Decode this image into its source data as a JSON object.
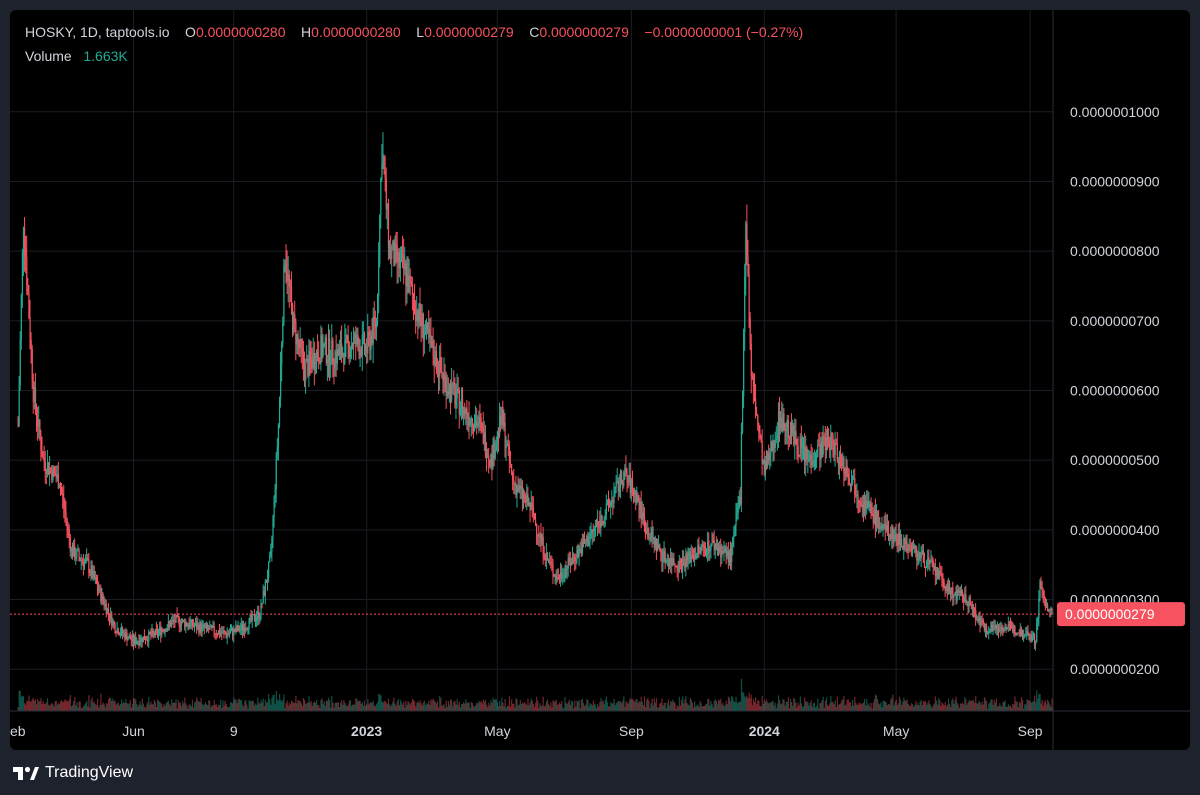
{
  "legend": {
    "symbol": "HOSKY, 1D, taptools.io",
    "o_label": "O",
    "o_value": "0.0000000280",
    "h_label": "H",
    "h_value": "0.0000000280",
    "l_label": "L",
    "l_value": "0.0000000279",
    "c_label": "C",
    "c_value": "0.0000000279",
    "change": "−0.0000000001 (−0.27%)",
    "volume_label": "Volume",
    "volume_value": "1.663K"
  },
  "footer": {
    "brand": "TradingView",
    "logo_icon": "tradingview-logo-icon"
  },
  "colors": {
    "up": "#22ab94",
    "down": "#f7525f",
    "background": "#000000",
    "frame": "#1e222d",
    "grid": "#1a1d24",
    "axis_text": "#d1d4dc",
    "price_line": "#f7525f",
    "price_label_bg": "#f7525f"
  },
  "chart_data": {
    "type": "candlestick",
    "symbol": "HOSKY",
    "interval": "1D",
    "y_axis": {
      "ticks": [
        2e-08,
        3e-08,
        4e-08,
        5e-08,
        6e-08,
        7e-08,
        8e-08,
        9e-08,
        1e-07
      ],
      "tick_labels": [
        "0.0000000200",
        "0.0000000300",
        "0.0000000400",
        "0.0000000500",
        "0.0000000600",
        "0.0000000700",
        "0.0000000800",
        "0.0000000900",
        "0.0000001000"
      ],
      "range": [
        1.4e-08,
        1.06e-07
      ]
    },
    "x_axis": {
      "range": [
        "2022-02-15",
        "2024-09-22"
      ],
      "ticks": [
        {
          "date": "2022-02-01",
          "label": "eb"
        },
        {
          "date": "2022-06-01",
          "label": "Jun"
        },
        {
          "date": "2022-09-01",
          "label": "9"
        },
        {
          "date": "2023-01-01",
          "label": "2023"
        },
        {
          "date": "2023-05-01",
          "label": "May"
        },
        {
          "date": "2023-09-01",
          "label": "Sep"
        },
        {
          "date": "2024-01-01",
          "label": "2024"
        },
        {
          "date": "2024-05-01",
          "label": "May"
        },
        {
          "date": "2024-09-01",
          "label": "Sep"
        }
      ]
    },
    "last_price": 2.79e-08,
    "last_price_label": "0.0000000279",
    "price_path": [
      [
        "2022-02-15",
        5.5e-08
      ],
      [
        "2022-02-20",
        8.5e-08
      ],
      [
        "2022-03-01",
        6e-08
      ],
      [
        "2022-03-10",
        5e-08
      ],
      [
        "2022-03-25",
        4.7e-08
      ],
      [
        "2022-04-05",
        3.7e-08
      ],
      [
        "2022-04-20",
        3.5e-08
      ],
      [
        "2022-05-01",
        3.1e-08
      ],
      [
        "2022-05-15",
        2.6e-08
      ],
      [
        "2022-06-01",
        2.4e-08
      ],
      [
        "2022-06-20",
        2.5e-08
      ],
      [
        "2022-07-10",
        2.7e-08
      ],
      [
        "2022-08-01",
        2.6e-08
      ],
      [
        "2022-08-25",
        2.5e-08
      ],
      [
        "2022-09-10",
        2.6e-08
      ],
      [
        "2022-09-25",
        2.8e-08
      ],
      [
        "2022-10-05",
        3.6e-08
      ],
      [
        "2022-10-12",
        5.5e-08
      ],
      [
        "2022-10-18",
        8e-08
      ],
      [
        "2022-10-25",
        7e-08
      ],
      [
        "2022-11-05",
        6.3e-08
      ],
      [
        "2022-11-20",
        6.6e-08
      ],
      [
        "2022-12-05",
        6.5e-08
      ],
      [
        "2022-12-20",
        6.7e-08
      ],
      [
        "2023-01-01",
        6.6e-08
      ],
      [
        "2023-01-10",
        7e-08
      ],
      [
        "2023-01-15",
        9.5e-08
      ],
      [
        "2023-01-22",
        8e-08
      ],
      [
        "2023-02-05",
        7.7e-08
      ],
      [
        "2023-02-15",
        7.2e-08
      ],
      [
        "2023-03-01",
        6.6e-08
      ],
      [
        "2023-03-15",
        6.1e-08
      ],
      [
        "2023-04-01",
        5.7e-08
      ],
      [
        "2023-04-15",
        5.5e-08
      ],
      [
        "2023-04-25",
        5e-08
      ],
      [
        "2023-05-05",
        5.6e-08
      ],
      [
        "2023-05-15",
        4.7e-08
      ],
      [
        "2023-06-01",
        4.3e-08
      ],
      [
        "2023-06-15",
        3.6e-08
      ],
      [
        "2023-06-25",
        3.3e-08
      ],
      [
        "2023-07-10",
        3.6e-08
      ],
      [
        "2023-07-25",
        3.9e-08
      ],
      [
        "2023-08-10",
        4.3e-08
      ],
      [
        "2023-08-25",
        4.8e-08
      ],
      [
        "2023-09-05",
        4.5e-08
      ],
      [
        "2023-09-15",
        4e-08
      ],
      [
        "2023-10-01",
        3.6e-08
      ],
      [
        "2023-10-15",
        3.5e-08
      ],
      [
        "2023-11-01",
        3.7e-08
      ],
      [
        "2023-11-15",
        3.8e-08
      ],
      [
        "2023-12-01",
        3.6e-08
      ],
      [
        "2023-12-10",
        4.5e-08
      ],
      [
        "2023-12-15",
        8.5e-08
      ],
      [
        "2023-12-20",
        6.2e-08
      ],
      [
        "2024-01-01",
        4.8e-08
      ],
      [
        "2024-01-15",
        5.6e-08
      ],
      [
        "2024-01-25",
        5.4e-08
      ],
      [
        "2024-02-10",
        5e-08
      ],
      [
        "2024-03-01",
        5.3e-08
      ],
      [
        "2024-03-15",
        4.9e-08
      ],
      [
        "2024-04-01",
        4.4e-08
      ],
      [
        "2024-04-20",
        4e-08
      ],
      [
        "2024-05-10",
        3.8e-08
      ],
      [
        "2024-06-01",
        3.5e-08
      ],
      [
        "2024-06-20",
        3.1e-08
      ],
      [
        "2024-07-05",
        3e-08
      ],
      [
        "2024-07-20",
        2.6e-08
      ],
      [
        "2024-08-10",
        2.6e-08
      ],
      [
        "2024-09-01",
        2.5e-08
      ],
      [
        "2024-09-06",
        2.4e-08
      ],
      [
        "2024-09-10",
        3.2e-08
      ],
      [
        "2024-09-18",
        2.8e-08
      ]
    ]
  }
}
